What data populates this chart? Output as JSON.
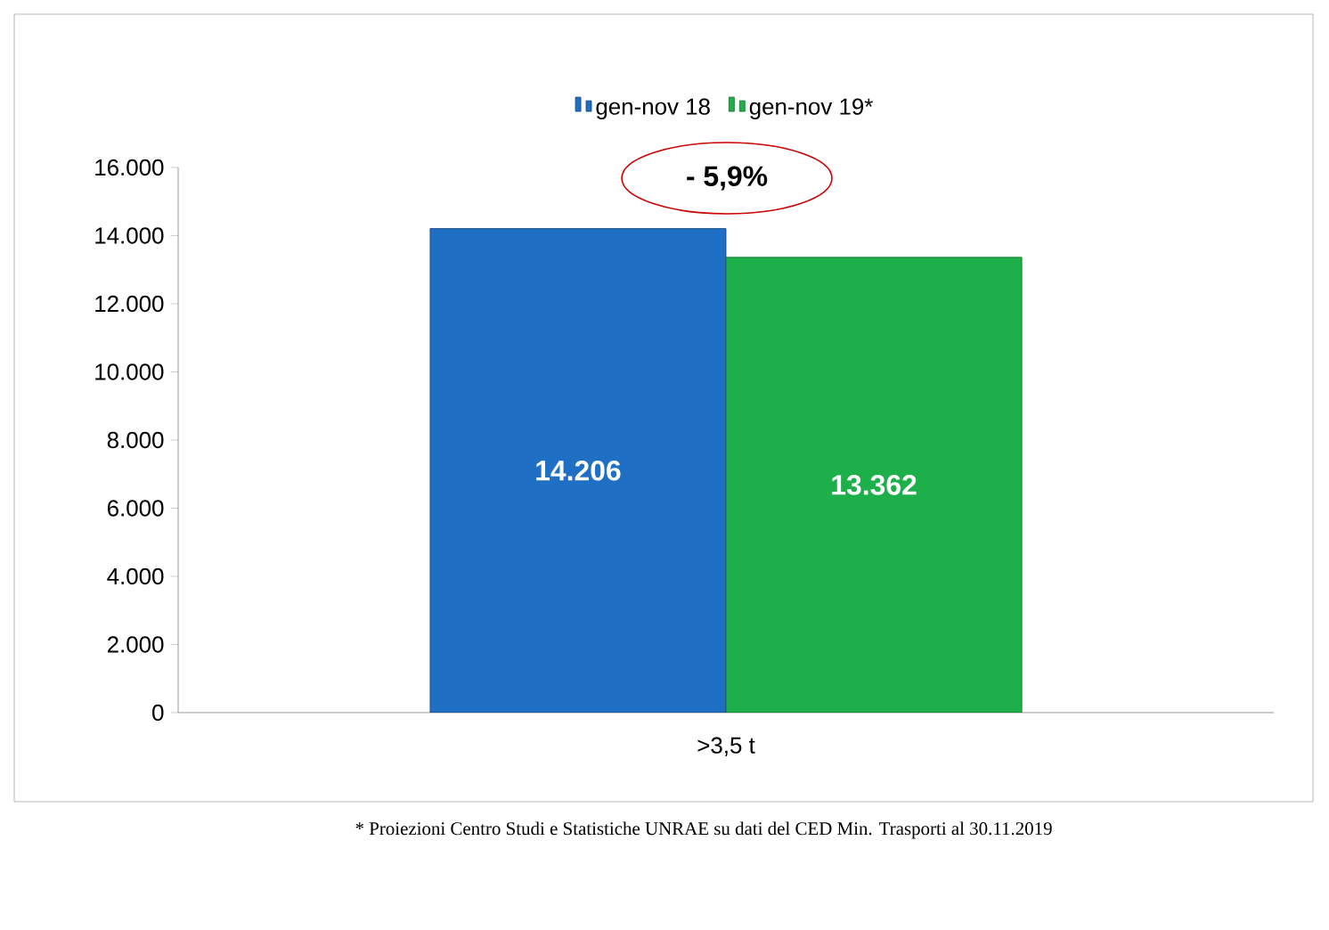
{
  "chart_data": {
    "type": "bar",
    "categories": [
      ">3,5 t"
    ],
    "series": [
      {
        "name": "gen-nov 18",
        "color": "#1f6fc5",
        "values": [
          14206
        ],
        "value_labels": [
          "14.206"
        ]
      },
      {
        "name": "gen-nov 19*",
        "color": "#1db04a",
        "values": [
          13362
        ],
        "value_labels": [
          "13.362"
        ]
      }
    ],
    "ylim": [
      0,
      16000
    ],
    "yticks": [
      {
        "value": 0,
        "label": "0"
      },
      {
        "value": 2000,
        "label": "2.000"
      },
      {
        "value": 4000,
        "label": "4.000"
      },
      {
        "value": 6000,
        "label": "6.000"
      },
      {
        "value": 8000,
        "label": "8.000"
      },
      {
        "value": 10000,
        "label": "10.000"
      },
      {
        "value": 12000,
        "label": "12.000"
      },
      {
        "value": 14000,
        "label": "14.000"
      },
      {
        "value": 16000,
        "label": "16.000"
      }
    ],
    "legend": "top",
    "annotations": [
      "- 5,9%",
      "* Proiezioni Centro Studi e Statistiche UNRAE su dati del CED Min. Trasporti al 30.11.2019"
    ]
  }
}
